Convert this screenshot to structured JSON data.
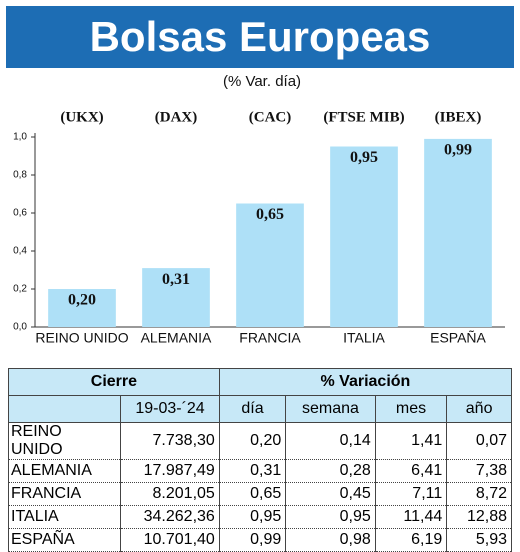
{
  "chart_data": {
    "type": "bar",
    "title": "Bolsas Europeas",
    "subtitle": "(% Var. día)",
    "index_labels": [
      "(UKX)",
      "(DAX)",
      "(CAC)",
      "(FTSE MIB)",
      "(IBEX)"
    ],
    "categories": [
      "REINO UNIDO",
      "ALEMANIA",
      "FRANCIA",
      "ITALIA",
      "ESPAÑA"
    ],
    "values": [
      0.2,
      0.31,
      0.65,
      0.95,
      0.99
    ],
    "value_labels": [
      "0,20",
      "0,31",
      "0,65",
      "0,95",
      "0,99"
    ],
    "color": "#aee0f7",
    "ylim": [
      0,
      1.0
    ],
    "yticks": [
      {
        "value": 0,
        "label": "0,0"
      },
      {
        "value": 0.2,
        "label": "0,2"
      },
      {
        "value": 0.4,
        "label": "0,4"
      },
      {
        "value": 0.6,
        "label": "0,6"
      },
      {
        "value": 0.8,
        "label": "0,8"
      },
      {
        "value": 1.0,
        "label": "1,0"
      }
    ]
  },
  "table": {
    "header": [
      "Cierre",
      "% Variación"
    ],
    "subheader": [
      "19-03-´24",
      "día",
      "semana",
      "mes",
      "año"
    ],
    "rows": [
      [
        "REINO UNIDO",
        "7.738,30",
        "0,20",
        "0,14",
        "1,41",
        "0,07"
      ],
      [
        "ALEMANIA",
        "17.987,49",
        "0,31",
        "0,28",
        "6,41",
        "7,38"
      ],
      [
        "FRANCIA",
        "8.201,05",
        "0,65",
        "0,45",
        "7,11",
        "8,72"
      ],
      [
        "ITALIA",
        "34.262,36",
        "0,95",
        "0,95",
        "11,44",
        "12,88"
      ],
      [
        "ESPAÑA",
        "10.701,40",
        "0,99",
        "0,98",
        "6,19",
        "5,93"
      ]
    ]
  }
}
